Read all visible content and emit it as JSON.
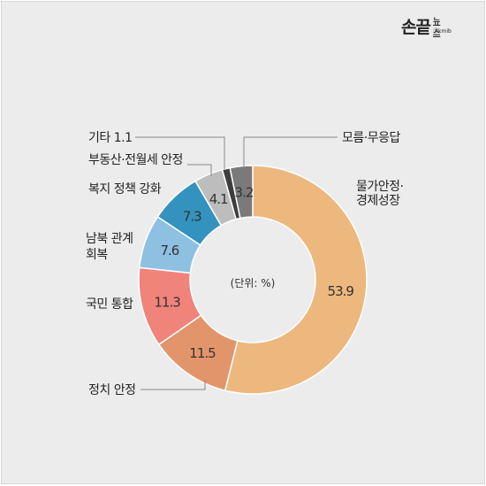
{
  "brand": {
    "main": "손끝",
    "sub": "뉴스",
    "small": "ⓒkmib"
  },
  "chart_data": {
    "type": "donut",
    "center_label": "(단위: %)",
    "slices": [
      {
        "label": "물가안정·경제성장",
        "label_lines": [
          "물가안정·",
          "경제성장"
        ],
        "value": 53.9,
        "value_text": "53.9",
        "color": "#edb87e"
      },
      {
        "label": "정치 안정",
        "label_lines": [
          "정치 안정"
        ],
        "value": 11.5,
        "value_text": "11.5",
        "color": "#e2956b"
      },
      {
        "label": "국민 통합",
        "label_lines": [
          "국민 통합"
        ],
        "value": 11.3,
        "value_text": "11.3",
        "color": "#f0837a"
      },
      {
        "label": "남북 관계 회복",
        "label_lines": [
          "남북 관계",
          "회복"
        ],
        "value": 7.6,
        "value_text": "7.6",
        "color": "#8ec0e2"
      },
      {
        "label": "복지 정책 강화",
        "label_lines": [
          "복지 정책 강화"
        ],
        "value": 7.3,
        "value_text": "7.3",
        "color": "#3392be"
      },
      {
        "label": "부동산·전월세 안정",
        "label_lines": [
          "부동산·전월세 안정"
        ],
        "value": 4.1,
        "value_text": "4.1",
        "color": "#bdbdbd"
      },
      {
        "label": "기타",
        "label_lines": [
          "기타 1.1"
        ],
        "value": 1.1,
        "value_text": "",
        "color": "#3e3e3e"
      },
      {
        "label": "모름·무응답",
        "label_lines": [
          "모름·무응답"
        ],
        "value": 3.2,
        "value_text": "3.2",
        "color": "#7a7a7a"
      }
    ]
  }
}
